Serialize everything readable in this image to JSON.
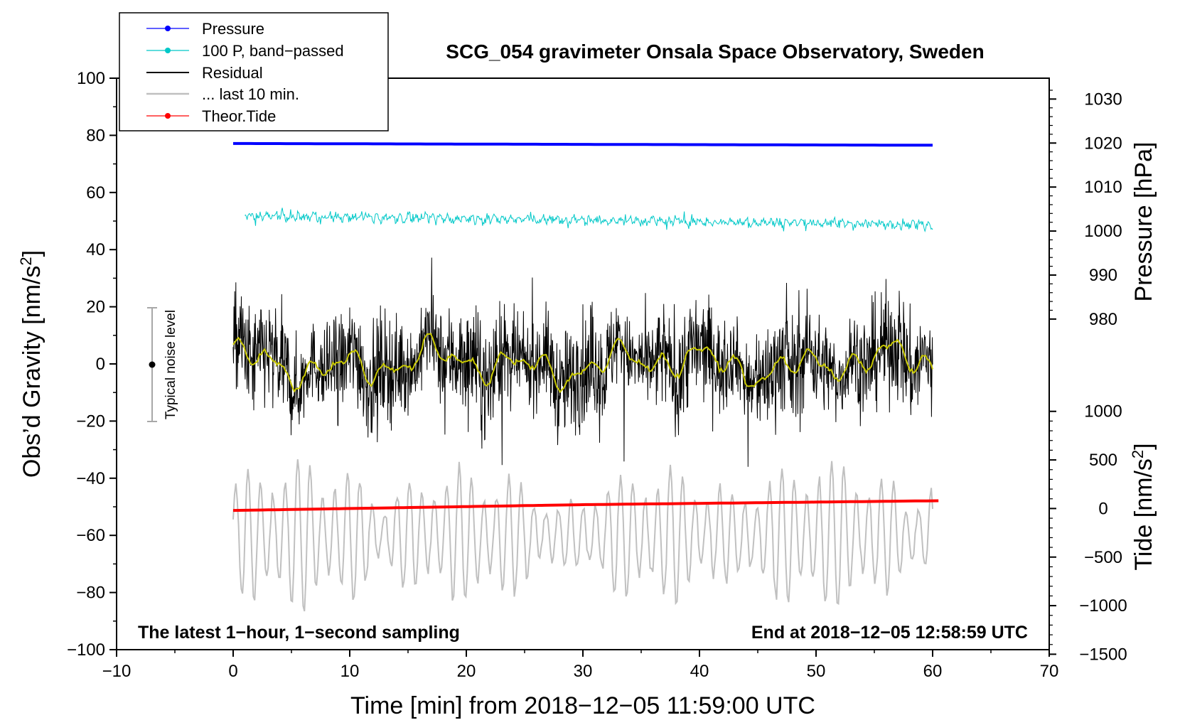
{
  "chart_data": {
    "type": "line",
    "title": "SCG_054 gravimeter Onsala Space Observatory, Sweden",
    "xlabel": "Time [min] from 2018−12−05 11:59:00 UTC",
    "ylabel_left": "Obs’d Gravity [nm/s",
    "ylabel_left_sup": "2",
    "ylabel_left_end": "]",
    "ylabel_right_pressure": "Pressure [hPa]",
    "ylabel_right_tide": "Tide [nm/s",
    "ylabel_right_tide_sup": "2",
    "ylabel_right_tide_end": "]",
    "xlim": [
      -10,
      70
    ],
    "ylim": [
      -100,
      100
    ],
    "pressure_axis": {
      "ticks": [
        980,
        990,
        1000,
        1010,
        1020,
        1030
      ],
      "scale": [
        1000,
        1020
      ],
      "maps_to_gravity": [
        46.5,
        77.3
      ]
    },
    "tide_axis": {
      "ticks": [
        -1500,
        -1000,
        -500,
        0,
        500,
        1000
      ],
      "scale": [
        0,
        1000
      ],
      "maps_to_gravity": [
        -50.6,
        -16.6
      ]
    },
    "x_ticks": [
      "−10",
      "0",
      "10",
      "20",
      "30",
      "40",
      "50",
      "60",
      "70"
    ],
    "x_tick_values": [
      -10,
      0,
      10,
      20,
      30,
      40,
      50,
      60,
      70
    ],
    "y_ticks": [
      "−100",
      "−80",
      "−60",
      "−40",
      "−20",
      "0",
      "20",
      "40",
      "60",
      "80",
      "100"
    ],
    "y_tick_values": [
      -100,
      -80,
      -60,
      -40,
      -20,
      0,
      20,
      40,
      60,
      80,
      100
    ],
    "pressure_tick_labels": [
      "980",
      "990",
      "1000",
      "1010",
      "1020",
      "1030"
    ],
    "tide_tick_labels": [
      "−1500",
      "−1000",
      "−500",
      "0",
      "500",
      "1000"
    ],
    "series": [
      {
        "name": "Pressure",
        "color": "#0000ff",
        "x_range": [
          0,
          60
        ],
        "values_hpa": [
          1019.9,
          1019.8,
          1019.7,
          1019.6,
          1019.5
        ],
        "marker": "dot"
      },
      {
        "name": "100 P, band−passed",
        "color": "#00c8c8",
        "x_range": [
          1,
          60
        ],
        "center_gravity": 50.3,
        "amplitude": 3,
        "marker": "dot"
      },
      {
        "name": "Residual",
        "color": "#000000",
        "x_range": [
          0,
          60
        ],
        "center_gravity": 0,
        "amplitude": 25
      },
      {
        "name": "... last 10 min.",
        "color": "#c0c0c0",
        "x_range": [
          0,
          60
        ],
        "center_gravity": -60,
        "amplitude": 20
      },
      {
        "name": "Theor.Tide",
        "color": "#ff0000",
        "x_range": [
          0,
          60.5
        ],
        "values_nms2": [
          -20,
          10,
          40,
          60,
          80
        ],
        "marker": "dot"
      },
      {
        "name": "smoothed residual",
        "color": "#c8c800",
        "x_range": [
          0,
          60
        ]
      }
    ],
    "noise_bar": {
      "label": "Typical noise level",
      "x": -7,
      "y_center": 0,
      "y_range": [
        -20,
        20
      ]
    },
    "annotations": {
      "bottom_left": "The latest 1−hour, 1−second sampling",
      "bottom_right": "End at 2018−12−05 12:58:59 UTC"
    },
    "legend": {
      "placement": "top-left",
      "entries": [
        "Pressure",
        "100 P, band−passed",
        "Residual",
        "... last 10 min.",
        "Theor.Tide"
      ]
    }
  }
}
